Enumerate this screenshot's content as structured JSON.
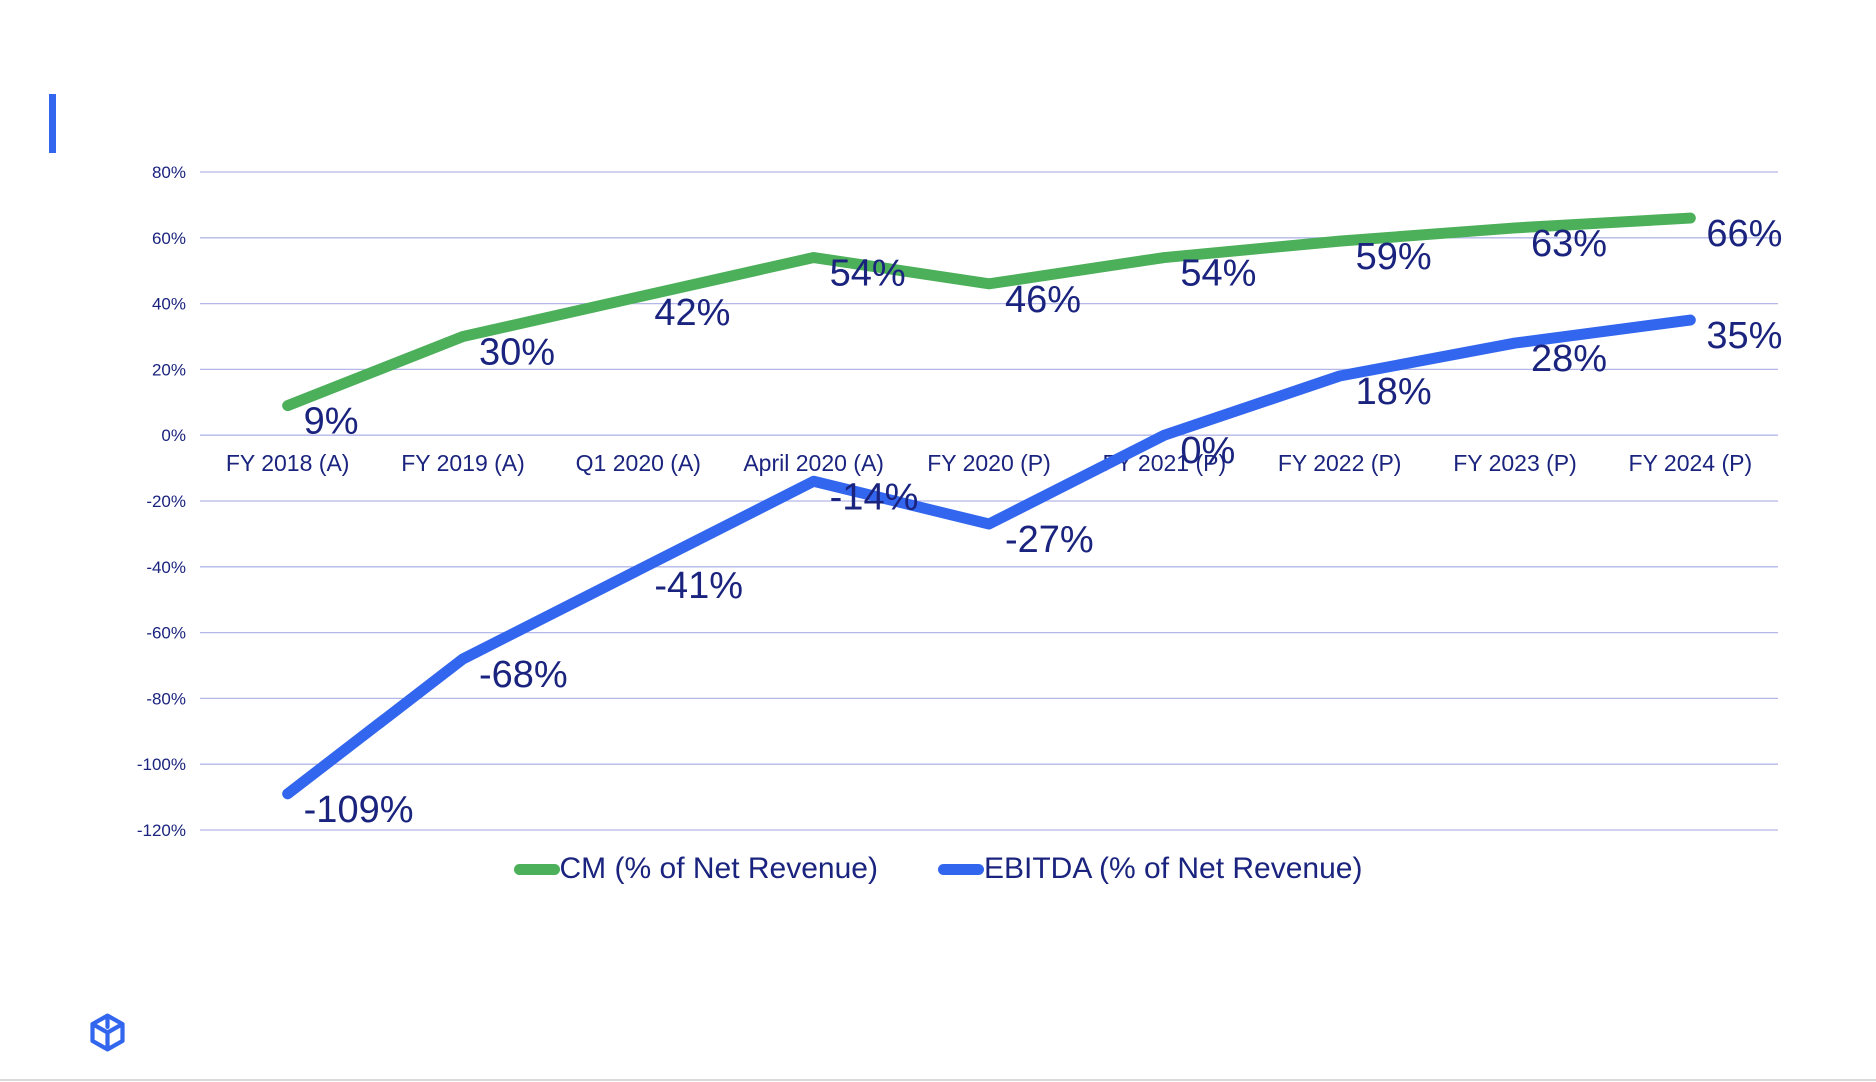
{
  "colors": {
    "accent": "#3366ee",
    "cm_series": "#4caf5a",
    "ebitda_series": "#3366ee",
    "text": "#1a237e",
    "grid": "#b3b8e8"
  },
  "icons": {
    "logo": "box-logo-icon"
  },
  "chart_data": {
    "type": "line",
    "categories": [
      "FY 2018 (A)",
      "FY 2019 (A)",
      "Q1 2020 (A)",
      "April 2020 (A)",
      "FY 2020 (P)",
      "FY 2021 (P)",
      "FY 2022 (P)",
      "FY 2023 (P)",
      "FY 2024 (P)"
    ],
    "series": [
      {
        "name": "CM (% of Net Revenue)",
        "values": [
          9,
          30,
          42,
          54,
          46,
          54,
          59,
          63,
          66
        ],
        "labels": [
          "9%",
          "30%",
          "42%",
          "54%",
          "46%",
          "54%",
          "59%",
          "63%",
          "66%"
        ]
      },
      {
        "name": "EBITDA (% of Net Revenue)",
        "values": [
          -109,
          -68,
          -41,
          -14,
          -27,
          0,
          18,
          28,
          35
        ],
        "labels": [
          "-109%",
          "-68%",
          "-41%",
          "-14%",
          "-27%",
          "0%",
          "18%",
          "28%",
          "35%"
        ]
      }
    ],
    "y_ticks": [
      80,
      60,
      40,
      20,
      0,
      -20,
      -40,
      -60,
      -80,
      -100,
      -120
    ],
    "y_tick_labels": [
      "80%",
      "60%",
      "40%",
      "20%",
      "0%",
      "-20%",
      "-40%",
      "-60%",
      "-80%",
      "-100%",
      "-120%"
    ],
    "ylim": [
      -120,
      80
    ],
    "grid": true,
    "legend_position": "bottom"
  }
}
